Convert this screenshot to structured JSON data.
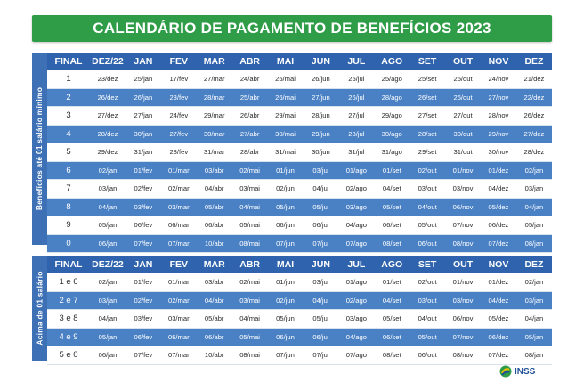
{
  "title": "CALENDÁRIO DE PAGAMENTO DE BENEFÍCIOS 2023",
  "headers": [
    "FINAL",
    "DEZ/22",
    "JAN",
    "FEV",
    "MAR",
    "ABR",
    "MAI",
    "JUN",
    "JUL",
    "AGO",
    "SET",
    "OUT",
    "NOV",
    "DEZ"
  ],
  "section1": {
    "label": "Benefícios até 01 salário mínimo",
    "rows": [
      {
        "final": "1",
        "dates": [
          "23/dez",
          "25/jan",
          "17/fev",
          "27/mar",
          "24/abr",
          "25/mai",
          "26/jun",
          "25/jul",
          "25/ago",
          "25/set",
          "25/out",
          "24/nov",
          "21/dez"
        ]
      },
      {
        "final": "2",
        "dates": [
          "26/dez",
          "26/jan",
          "23/fev",
          "28/mar",
          "25/abr",
          "26/mai",
          "27/jun",
          "26/jul",
          "28/ago",
          "26/set",
          "26/out",
          "27/nov",
          "22/dez"
        ]
      },
      {
        "final": "3",
        "dates": [
          "27/dez",
          "27/jan",
          "24/fev",
          "29/mar",
          "26/abr",
          "29/mai",
          "28/jun",
          "27/jul",
          "29/ago",
          "27/set",
          "27/out",
          "28/nov",
          "26/dez"
        ]
      },
      {
        "final": "4",
        "dates": [
          "28/dez",
          "30/jan",
          "27/fev",
          "30/mar",
          "27/abr",
          "30/mai",
          "29/jun",
          "28/jul",
          "30/ago",
          "28/set",
          "30/out",
          "29/nov",
          "27/dez"
        ]
      },
      {
        "final": "5",
        "dates": [
          "29/dez",
          "31/jan",
          "28/fev",
          "31/mar",
          "28/abr",
          "31/mai",
          "30/jun",
          "31/jul",
          "31/ago",
          "29/set",
          "31/out",
          "30/nov",
          "28/dez"
        ]
      },
      {
        "final": "6",
        "dates": [
          "02/jan",
          "01/fev",
          "01/mar",
          "03/abr",
          "02/mai",
          "01/jun",
          "03/jul",
          "01/ago",
          "01/set",
          "02/out",
          "01/nov",
          "01/dez",
          "02/jan"
        ]
      },
      {
        "final": "7",
        "dates": [
          "03/jan",
          "02/fev",
          "02/mar",
          "04/abr",
          "03/mai",
          "02/jun",
          "04/jul",
          "02/ago",
          "04/set",
          "03/out",
          "03/nov",
          "04/dez",
          "03/jan"
        ]
      },
      {
        "final": "8",
        "dates": [
          "04/jan",
          "03/fev",
          "03/mar",
          "05/abr",
          "04/mai",
          "05/jun",
          "05/jul",
          "03/ago",
          "05/set",
          "04/out",
          "06/nov",
          "05/dez",
          "04/jan"
        ]
      },
      {
        "final": "9",
        "dates": [
          "05/jan",
          "06/fev",
          "06/mar",
          "06/abr",
          "05/mai",
          "06/jun",
          "06/jul",
          "04/ago",
          "06/set",
          "05/out",
          "07/nov",
          "06/dez",
          "05/jan"
        ]
      },
      {
        "final": "0",
        "dates": [
          "06/jan",
          "07/fev",
          "07/mar",
          "10/abr",
          "08/mai",
          "07/jun",
          "07/jul",
          "07/ago",
          "08/set",
          "06/out",
          "08/nov",
          "07/dez",
          "08/jan"
        ]
      }
    ]
  },
  "section2": {
    "label": "Acima de 01 salário",
    "rows": [
      {
        "final": "1 e 6",
        "dates": [
          "02/jan",
          "01/fev",
          "01/mar",
          "03/abr",
          "02/mai",
          "01/jun",
          "03/jul",
          "01/ago",
          "01/set",
          "02/out",
          "01/nov",
          "01/dez",
          "02/jan"
        ]
      },
      {
        "final": "2 e 7",
        "dates": [
          "03/jan",
          "02/fev",
          "02/mar",
          "04/abr",
          "03/mai",
          "02/jun",
          "04/jul",
          "02/ago",
          "04/set",
          "03/out",
          "03/nov",
          "04/dez",
          "03/jan"
        ]
      },
      {
        "final": "3 e 8",
        "dates": [
          "04/jan",
          "03/fev",
          "03/mar",
          "05/abr",
          "04/mai",
          "05/jun",
          "05/jul",
          "03/ago",
          "05/set",
          "04/out",
          "06/nov",
          "05/dez",
          "04/jan"
        ]
      },
      {
        "final": "4 e 9",
        "dates": [
          "05/jan",
          "06/fev",
          "06/mar",
          "06/abr",
          "05/mai",
          "06/jun",
          "06/jul",
          "04/ago",
          "06/set",
          "05/out",
          "07/nov",
          "06/dez",
          "05/jan"
        ]
      },
      {
        "final": "5 e 0",
        "dates": [
          "06/jan",
          "07/fev",
          "07/mar",
          "10/abr",
          "08/mai",
          "07/jun",
          "07/jul",
          "07/ago",
          "08/set",
          "06/out",
          "08/nov",
          "07/dez",
          "08/jan"
        ]
      }
    ]
  },
  "logo": {
    "text": "INSS",
    "icon": "inss-logo-icon"
  },
  "colors": {
    "banner": "#2f9c47",
    "header": "#2f63ad",
    "blue_row": "#4a80c4",
    "side": "#3d70b5"
  }
}
